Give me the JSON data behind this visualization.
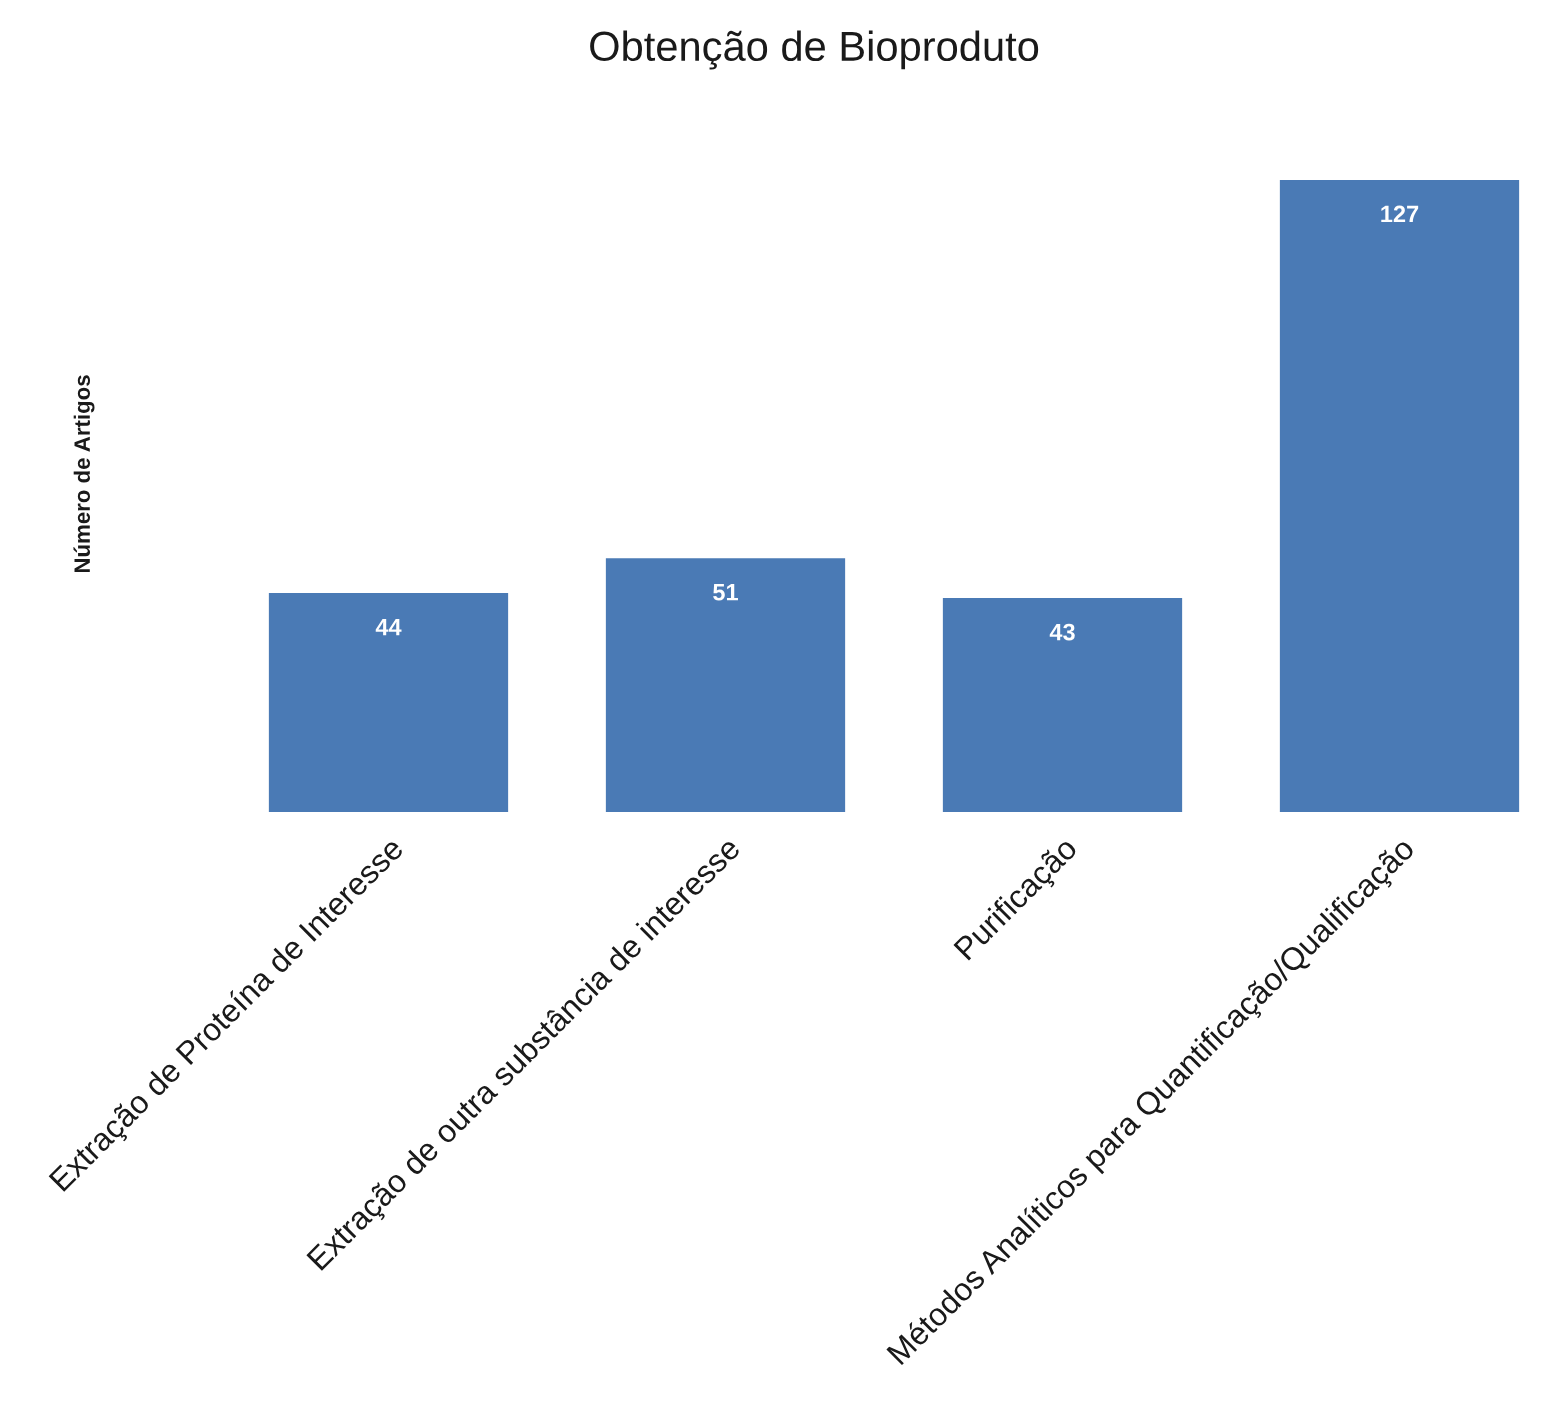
{
  "chart_data": {
    "type": "bar",
    "title": "Obtenção de Bioproduto",
    "ylabel": "Número de Artigos",
    "categories": [
      "Extração de Proteína de Interesse",
      "Extração de outra substância de interesse",
      "Purificação",
      "Métodos Analíticos para Quantificação/Qualificação"
    ],
    "values": [
      44,
      51,
      43,
      127
    ],
    "color": "#4a7ab5",
    "data_labels": true,
    "tick_labels": "x"
  }
}
